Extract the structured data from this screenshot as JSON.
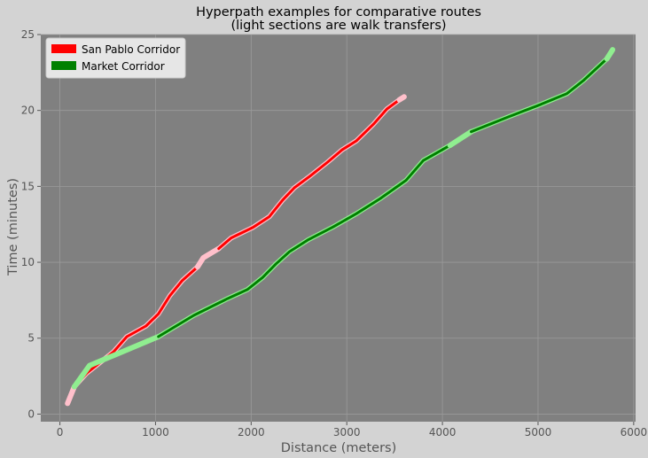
{
  "chart_data": {
    "type": "line",
    "title": "Hyperpath examples for comparative routes",
    "subtitle": "(light sections are walk transfers)",
    "xlabel": "Distance (meters)",
    "ylabel": "Time (minutes)",
    "xlim": [
      -200,
      6020
    ],
    "ylim": [
      -0.5,
      25
    ],
    "xticks": [
      0,
      1000,
      2000,
      3000,
      4000,
      5000,
      6000
    ],
    "yticks": [
      0,
      5,
      10,
      15,
      20,
      25
    ],
    "grid": true,
    "legend_position": "top-left",
    "colors": {
      "figure_bg": "#d3d3d3",
      "plot_bg": "#808080",
      "grid": "#9a9a9a"
    },
    "series": [
      {
        "name": "San Pablo Corridor",
        "color": "#ff0000",
        "walk_color": "#ffc0cb",
        "segments": [
          {
            "mode": "walk",
            "points": [
              [
                80,
                0.7
              ],
              [
                150,
                1.8
              ]
            ]
          },
          {
            "mode": "transit",
            "points": [
              [
                150,
                1.8
              ],
              [
                280,
                2.7
              ],
              [
                420,
                3.4
              ],
              [
                560,
                4.1
              ],
              [
                700,
                5.1
              ],
              [
                900,
                5.8
              ],
              [
                1030,
                6.6
              ],
              [
                1150,
                7.8
              ],
              [
                1280,
                8.8
              ],
              [
                1440,
                9.7
              ]
            ]
          },
          {
            "mode": "walk",
            "points": [
              [
                1440,
                9.7
              ],
              [
                1500,
                10.3
              ],
              [
                1660,
                10.9
              ]
            ]
          },
          {
            "mode": "transit",
            "points": [
              [
                1660,
                10.9
              ],
              [
                1790,
                11.6
              ],
              [
                2020,
                12.3
              ],
              [
                2190,
                13.0
              ],
              [
                2330,
                14.1
              ],
              [
                2450,
                14.9
              ],
              [
                2620,
                15.7
              ],
              [
                2800,
                16.6
              ],
              [
                2950,
                17.4
              ],
              [
                3100,
                18.0
              ],
              [
                3280,
                19.1
              ],
              [
                3420,
                20.1
              ],
              [
                3550,
                20.7
              ]
            ]
          },
          {
            "mode": "walk",
            "points": [
              [
                3550,
                20.7
              ],
              [
                3600,
                20.9
              ]
            ]
          }
        ]
      },
      {
        "name": "Market Corridor",
        "color": "#008000",
        "walk_color": "#90ee90",
        "segments": [
          {
            "mode": "walk",
            "points": [
              [
                150,
                1.8
              ],
              [
                310,
                3.2
              ],
              [
                500,
                3.7
              ],
              [
                1030,
                5.1
              ]
            ]
          },
          {
            "mode": "transit",
            "points": [
              [
                1030,
                5.1
              ],
              [
                1400,
                6.5
              ],
              [
                1750,
                7.6
              ],
              [
                1960,
                8.2
              ],
              [
                2120,
                9.0
              ],
              [
                2260,
                9.9
              ],
              [
                2400,
                10.7
              ],
              [
                2600,
                11.5
              ],
              [
                2850,
                12.3
              ],
              [
                3100,
                13.2
              ],
              [
                3350,
                14.2
              ],
              [
                3620,
                15.4
              ],
              [
                3800,
                16.7
              ],
              [
                4080,
                17.7
              ]
            ]
          },
          {
            "mode": "walk",
            "points": [
              [
                4080,
                17.7
              ],
              [
                4300,
                18.6
              ]
            ]
          },
          {
            "mode": "transit",
            "points": [
              [
                4300,
                18.6
              ],
              [
                4700,
                19.6
              ],
              [
                5030,
                20.4
              ],
              [
                5300,
                21.1
              ],
              [
                5480,
                22.0
              ],
              [
                5720,
                23.4
              ]
            ]
          },
          {
            "mode": "walk",
            "points": [
              [
                5720,
                23.4
              ],
              [
                5780,
                24.0
              ]
            ]
          }
        ]
      }
    ]
  }
}
